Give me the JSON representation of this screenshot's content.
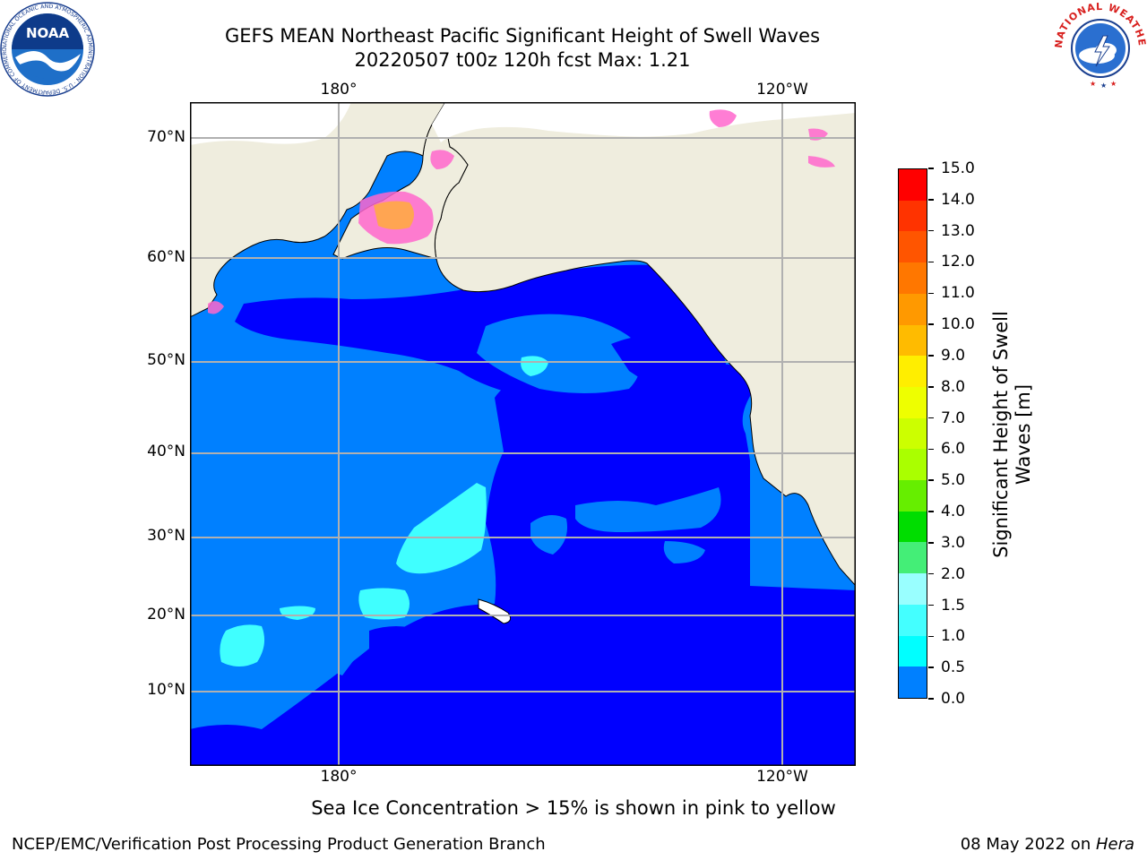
{
  "title": {
    "line1": "GEFS MEAN Northeast Pacific Significant Height of Swell Waves",
    "line2": "20220507 t00z 120h fcst   Max: 1.21"
  },
  "map": {
    "lon_labels_top": [
      "180°",
      "120°W"
    ],
    "lon_labels_bottom": [
      "180°",
      "120°W"
    ],
    "lat_labels": [
      "70°N",
      "60°N",
      "50°N",
      "40°N",
      "30°N",
      "20°N",
      "10°N"
    ],
    "colors": {
      "ocean_low": "#0000ff",
      "ocean_mid": "#0080ff",
      "swell_1_15": "#00ffff",
      "swell_15_2": "#40ffff",
      "land": "#efedde",
      "ice_pink": "#ff66cc",
      "ice_orange": "#ffaa44",
      "grid": "#b0b0b0"
    }
  },
  "colorbar": {
    "label": "Significant Height of Swell Waves [m]",
    "label_line1": "Significant Height of Swell",
    "label_line2": "Waves [m]",
    "ticks": [
      "15.0",
      "14.0",
      "13.0",
      "12.0",
      "11.0",
      "10.0",
      "9.0",
      "8.0",
      "7.0",
      "6.0",
      "5.0",
      "4.0",
      "3.0",
      "2.0",
      "1.5",
      "1.0",
      "0.5",
      "0.0"
    ],
    "colors": [
      "#ff0000",
      "#ff3300",
      "#ff5500",
      "#ff7700",
      "#ff9900",
      "#ffbb00",
      "#ffee00",
      "#eeff00",
      "#ccff00",
      "#aaff00",
      "#66ee00",
      "#00dd00",
      "#44ee77",
      "#99ffff",
      "#44ffff",
      "#00ffff",
      "#0080ff",
      "#0000ff"
    ]
  },
  "logos": {
    "noaa_text": "NOAA",
    "noaa_ring": "NATIONAL OCEANIC AND ATMOSPHERIC ADMINISTRATION · U.S. DEPARTMENT OF COMMERCE",
    "nws_ring": "NATIONAL WEATHER SERVICE"
  },
  "note": "Sea Ice Concentration > 15% is shown in pink to yellow",
  "footer": {
    "left": "NCEP/EMC/Verification Post Processing Product Generation Branch",
    "right_date": "08 May 2022 on ",
    "right_host": "Hera"
  }
}
